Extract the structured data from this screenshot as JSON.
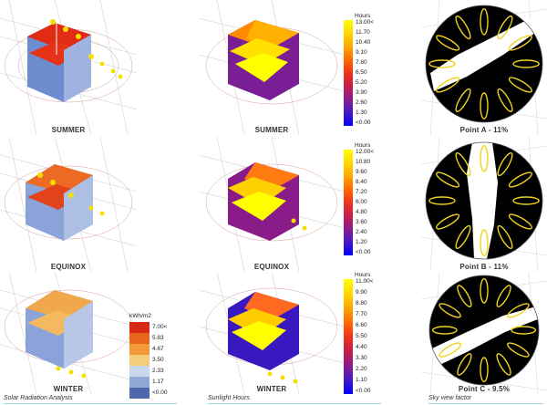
{
  "rows": [
    {
      "season": "SUMMER"
    },
    {
      "season": "EQUINOX"
    },
    {
      "season": "WINTER"
    }
  ],
  "sky_points": [
    "Point A - 11%",
    "Point B - 11%",
    "Point C - 9.5%"
  ],
  "radiation_legend": {
    "unit": "kWh/m2",
    "items": [
      {
        "label": "7.00<",
        "color": "#d62a15"
      },
      {
        "label": "5.83",
        "color": "#e8671e"
      },
      {
        "label": "4.67",
        "color": "#f29a3a"
      },
      {
        "label": "3.50",
        "color": "#f5cc7a"
      },
      {
        "label": "2.33",
        "color": "#c8d6ee"
      },
      {
        "label": "1.17",
        "color": "#8fa8d6"
      },
      {
        "label": "<0.00",
        "color": "#4e67ad"
      }
    ]
  },
  "sunlight_legends": [
    {
      "title": "Hours",
      "labels": [
        "13.00<",
        "11.70",
        "10.40",
        "9.10",
        "7.80",
        "6.50",
        "5.20",
        "3.90",
        "2.60",
        "1.30",
        "<0.00"
      ]
    },
    {
      "title": "Hours",
      "labels": [
        "12.00<",
        "10.80",
        "9.60",
        "8.40",
        "7.20",
        "6.00",
        "4.80",
        "3.60",
        "2.40",
        "1.20",
        "<0.00"
      ]
    },
    {
      "title": "Hours",
      "labels": [
        "11.00<",
        "9.90",
        "8.80",
        "7.70",
        "6.60",
        "5.50",
        "4.40",
        "3.30",
        "2.20",
        "1.10",
        "<0.00"
      ]
    }
  ],
  "captions": {
    "col1": "Solar Radiation Analysis",
    "col2": "Sunlight Hours",
    "col3": "Sky view factor"
  },
  "colors": {
    "sunlight_gradient": [
      "#ffff00",
      "#ffd800",
      "#ffa600",
      "#ff6a00",
      "#f0321a",
      "#c81c4a",
      "#8c1c8c",
      "#4618c8",
      "#0000ff"
    ],
    "sun_path": "#f0d21e",
    "sky_mask": "#ffffff"
  }
}
